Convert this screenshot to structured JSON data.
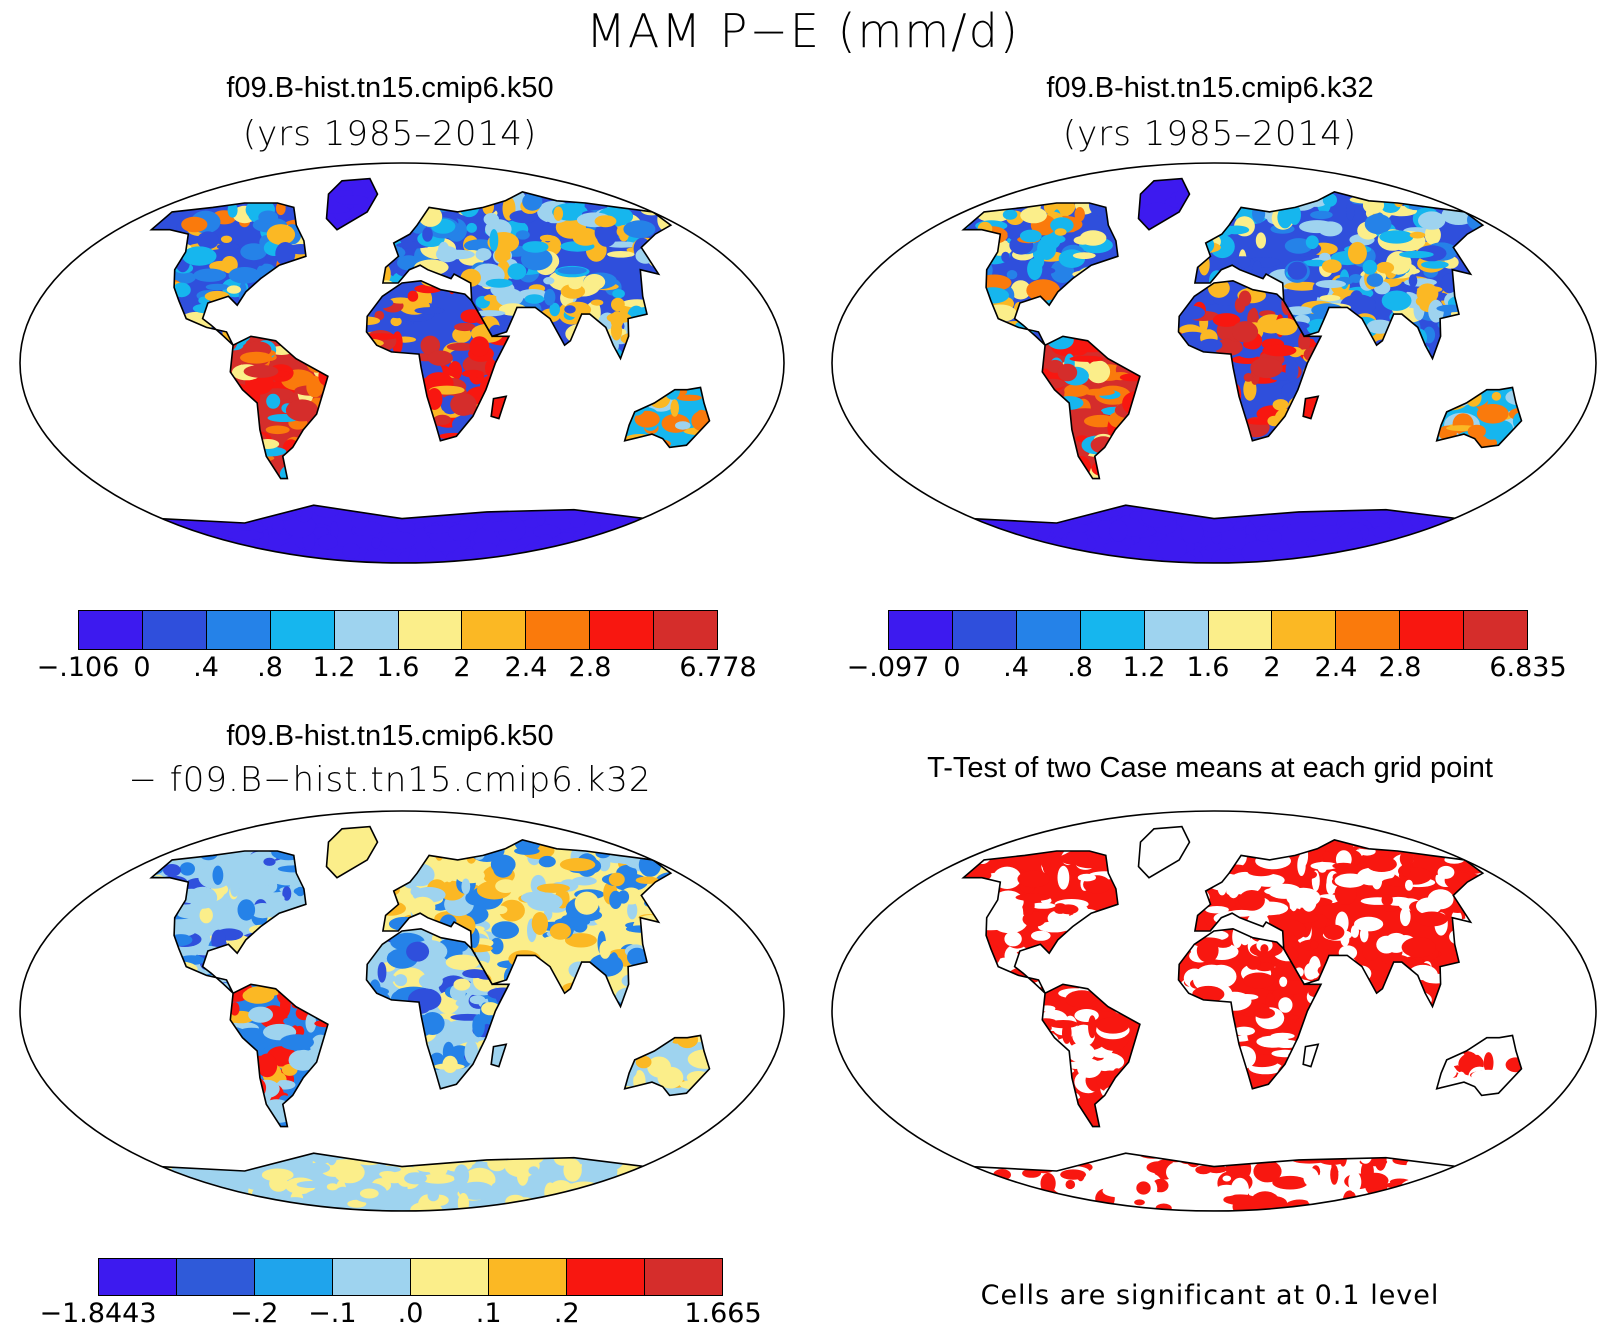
{
  "title": "MAM P−E (mm/d)",
  "panels": [
    {
      "title": "f09.B-hist.tn15.cmip6.k50",
      "subtitle": "(yrs 1985–2014)",
      "colorbar": {
        "colors": [
          "#3d1aef",
          "#2f4fdc",
          "#2582e8",
          "#16b6ee",
          "#9ed3ef",
          "#fbee8a",
          "#fbb824",
          "#fa7a0c",
          "#f81710",
          "#d52d2b"
        ],
        "labels": [
          "−.106",
          "0",
          ".4",
          ".8",
          "1.2",
          "1.6",
          "2",
          "2.4",
          "2.8",
          "6.778"
        ],
        "label_boundaries": [
          0,
          1,
          2,
          3,
          4,
          5,
          6,
          7,
          8,
          10
        ]
      }
    },
    {
      "title": "f09.B-hist.tn15.cmip6.k32",
      "subtitle": "(yrs 1985–2014)",
      "colorbar": {
        "colors": [
          "#3d1aef",
          "#2f4fdc",
          "#2582e8",
          "#16b6ee",
          "#9ed3ef",
          "#fbee8a",
          "#fbb824",
          "#fa7a0c",
          "#f81710",
          "#d52d2b"
        ],
        "labels": [
          "−.097",
          "0",
          ".4",
          ".8",
          "1.2",
          "1.6",
          "2",
          "2.4",
          "2.8",
          "6.835"
        ],
        "label_boundaries": [
          0,
          1,
          2,
          3,
          4,
          5,
          6,
          7,
          8,
          10
        ]
      }
    },
    {
      "title": "f09.B-hist.tn15.cmip6.k50",
      "subtitle": "− f09.B−hist.tn15.cmip6.k32",
      "colorbar": {
        "colors": [
          "#3d1aef",
          "#2f5ad9",
          "#1fa4ec",
          "#9ed3ef",
          "#fbee8a",
          "#fbb824",
          "#f81710",
          "#d52d2b"
        ],
        "labels": [
          "−1.8443",
          "−.2",
          "−.1",
          ".0",
          ".1",
          ".2",
          "1.665"
        ],
        "label_boundaries": [
          0,
          2,
          3,
          4,
          5,
          6,
          8
        ]
      }
    },
    {
      "title": "T-Test of two Case means at each grid point",
      "note": "Cells are significant at 0.1 level"
    }
  ]
}
